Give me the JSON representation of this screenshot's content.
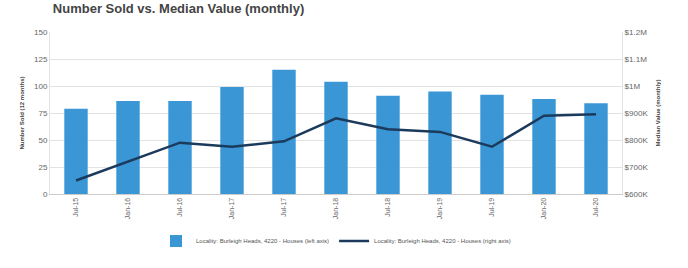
{
  "chart_data": {
    "type": "bar",
    "title": "Number Sold vs. Median Value (monthly)",
    "y_label": "Number Sold (12 months)",
    "y2_label": "Median Value (monthly)",
    "categories": [
      "Jul-15",
      "Jan-16",
      "Jul-16",
      "Jan-17",
      "Jul-17",
      "Jan-18",
      "Jul-18",
      "Jan-19",
      "Jul-19",
      "Jan-20",
      "Jul-20"
    ],
    "series": [
      {
        "name": "Locality: Burleigh Heads, 4220 - Houses (left axis)",
        "type": "bar",
        "color": "#3a96d4",
        "values": [
          79,
          86,
          86,
          99,
          115,
          104,
          91,
          95,
          92,
          88,
          84
        ]
      },
      {
        "name": "Locality: Burleigh Heads, 4220 - Houses (right axis)",
        "type": "line",
        "axis": "y2",
        "color": "#1b3a5c",
        "values": [
          650000,
          720000,
          790000,
          775000,
          795000,
          880000,
          840000,
          830000,
          775000,
          890000,
          895000
        ]
      }
    ],
    "ylim": [
      0,
      150
    ],
    "yticks": [
      0,
      25,
      50,
      75,
      100,
      125,
      150
    ],
    "y2lim": [
      600000,
      1200000
    ],
    "y2ticks": [
      {
        "value": 600000,
        "label": "$600K"
      },
      {
        "value": 700000,
        "label": "$700K"
      },
      {
        "value": 800000,
        "label": "$800K"
      },
      {
        "value": 900000,
        "label": "$900K"
      },
      {
        "value": 1000000,
        "label": "$1M"
      },
      {
        "value": 1100000,
        "label": "$1.1M"
      },
      {
        "value": 1200000,
        "label": "$1.2M"
      }
    ],
    "grid": true,
    "legend": "bottom"
  }
}
